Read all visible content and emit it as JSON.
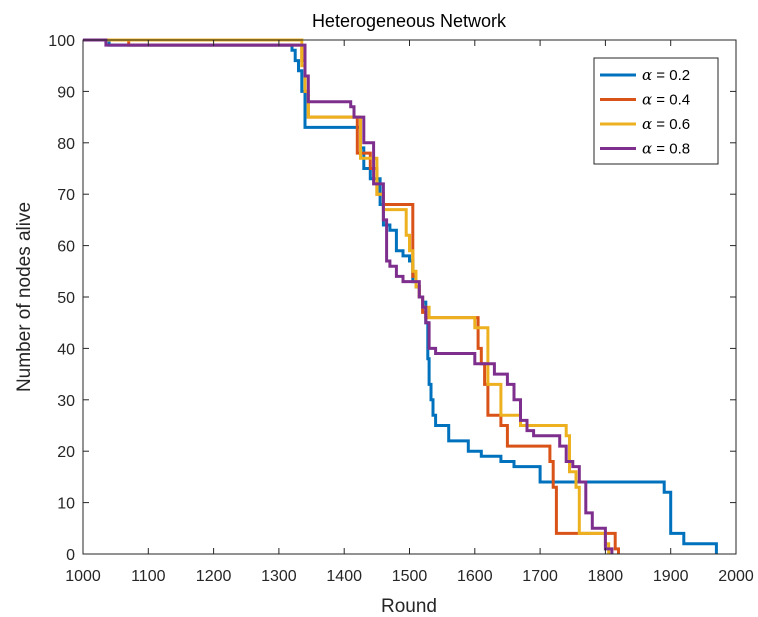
{
  "chart_data": {
    "type": "line",
    "title": "Heterogeneous Network",
    "xlabel": "Round",
    "ylabel": "Number of nodes alive",
    "xlim": [
      1000,
      2000
    ],
    "ylim": [
      0,
      100
    ],
    "xticks": [
      "1000",
      "1100",
      "1200",
      "1300",
      "1400",
      "1500",
      "1600",
      "1700",
      "1800",
      "1900",
      "2000"
    ],
    "yticks": [
      "0",
      "10",
      "20",
      "30",
      "40",
      "50",
      "60",
      "70",
      "80",
      "90",
      "100"
    ],
    "grid": false,
    "legend_position": "top-right",
    "series": [
      {
        "name": "α = 0.2",
        "alpha_symbol": "α",
        "alpha_value": " = 0.2",
        "color": "#0072BD",
        "x": [
          1000,
          1040,
          1320,
          1325,
          1330,
          1335,
          1340,
          1420,
          1425,
          1430,
          1440,
          1455,
          1460,
          1470,
          1480,
          1490,
          1500,
          1505,
          1510,
          1515,
          1520,
          1525,
          1528,
          1530,
          1533,
          1536,
          1540,
          1560,
          1590,
          1610,
          1640,
          1660,
          1700,
          1850,
          1890,
          1900,
          1920,
          1970
        ],
        "y": [
          100,
          99,
          98,
          96,
          94,
          90,
          83,
          83,
          79,
          75,
          73,
          68,
          64,
          63,
          59,
          58,
          57,
          53,
          52,
          50,
          49,
          45,
          38,
          33,
          30,
          27,
          25,
          22,
          20,
          19,
          18,
          17,
          14,
          14,
          12,
          4,
          2,
          0
        ]
      },
      {
        "name": "α = 0.4",
        "alpha_symbol": "α",
        "alpha_value": " = 0.4",
        "color": "#D95319",
        "x": [
          1000,
          1070,
          1335,
          1340,
          1345,
          1415,
          1420,
          1440,
          1450,
          1460,
          1470,
          1500,
          1505,
          1510,
          1515,
          1520,
          1525,
          1600,
          1605,
          1610,
          1615,
          1620,
          1640,
          1650,
          1700,
          1715,
          1720,
          1725,
          1800,
          1815,
          1820
        ],
        "y": [
          100,
          99,
          96,
          90,
          85,
          85,
          78,
          75,
          70,
          68,
          68,
          68,
          54,
          52,
          50,
          47,
          46,
          46,
          40,
          37,
          33,
          27,
          25,
          21,
          21,
          18,
          13,
          4,
          4,
          1,
          0
        ]
      },
      {
        "name": "α = 0.6",
        "alpha_symbol": "α",
        "alpha_value": " = 0.6",
        "color": "#EDB120",
        "x": [
          1000,
          1060,
          1335,
          1340,
          1345,
          1420,
          1425,
          1435,
          1445,
          1450,
          1460,
          1480,
          1495,
          1500,
          1505,
          1510,
          1515,
          1520,
          1530,
          1590,
          1600,
          1615,
          1620,
          1640,
          1660,
          1670,
          1710,
          1740,
          1745,
          1755,
          1760,
          1790,
          1800,
          1805
        ],
        "y": [
          100,
          100,
          95,
          90,
          85,
          85,
          77,
          77,
          77,
          70,
          67,
          67,
          62,
          59,
          55,
          52,
          50,
          48,
          46,
          46,
          44,
          44,
          33,
          27,
          27,
          25,
          25,
          23,
          16,
          13,
          4,
          4,
          2,
          0
        ]
      },
      {
        "name": "α = 0.8",
        "alpha_symbol": "α",
        "alpha_value": " = 0.8",
        "color": "#7E2F8E",
        "x": [
          1000,
          1035,
          1335,
          1340,
          1345,
          1400,
          1410,
          1415,
          1420,
          1430,
          1445,
          1460,
          1465,
          1470,
          1480,
          1490,
          1510,
          1515,
          1520,
          1525,
          1530,
          1540,
          1590,
          1600,
          1620,
          1630,
          1650,
          1660,
          1670,
          1680,
          1690,
          1720,
          1730,
          1740,
          1750,
          1760,
          1770,
          1780,
          1800,
          1810
        ],
        "y": [
          100,
          99,
          99,
          93,
          88,
          88,
          87,
          85,
          85,
          80,
          72,
          65,
          57,
          56,
          54,
          53,
          53,
          50,
          48,
          45,
          40,
          39,
          39,
          37,
          37,
          35,
          33,
          30,
          26,
          24,
          23,
          23,
          21,
          18,
          17,
          14,
          8,
          5,
          1,
          0
        ]
      }
    ]
  }
}
